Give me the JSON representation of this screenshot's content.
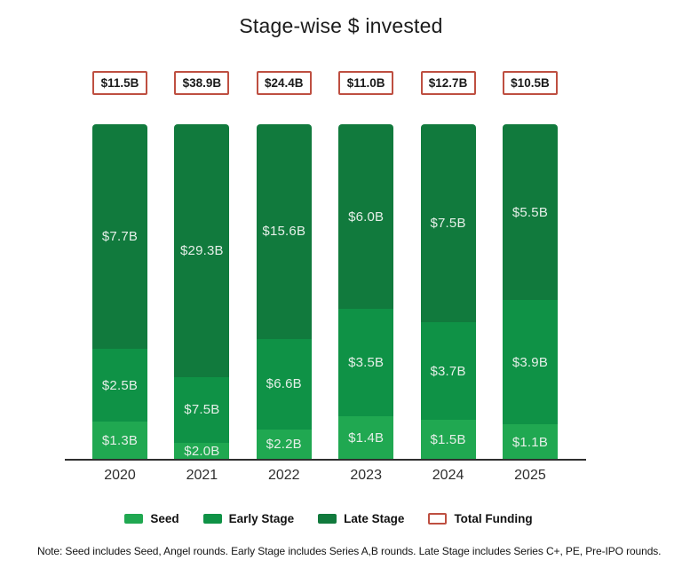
{
  "title": "Stage-wise $ invested",
  "colors": {
    "seed": "#20A851",
    "early_stage": "#0F9246",
    "late_stage": "#117A3D",
    "total_border": "#BE4F41",
    "segment_label_text": "#E5EFE8",
    "axis": "#2F2F2F"
  },
  "chart_data": {
    "type": "bar",
    "stacked": "percent-height-absolute-labels",
    "orientation": "vertical",
    "title": "Stage-wise $ invested",
    "xlabel": "",
    "ylabel": "",
    "grid": false,
    "legend_position": "bottom",
    "categories": [
      "2020",
      "2021",
      "2022",
      "2023",
      "2024",
      "2025"
    ],
    "series": [
      {
        "name": "Seed",
        "color_key": "seed",
        "values": [
          1.3,
          2.0,
          2.2,
          1.4,
          1.5,
          1.1
        ],
        "labels": [
          "$1.3B",
          "$2.0B",
          "$2.2B",
          "$1.4B",
          "$1.5B",
          "$1.1B"
        ]
      },
      {
        "name": "Early Stage",
        "color_key": "early_stage",
        "values": [
          2.5,
          7.5,
          6.6,
          3.5,
          3.7,
          3.9
        ],
        "labels": [
          "$2.5B",
          "$7.5B",
          "$6.6B",
          "$3.5B",
          "$3.7B",
          "$3.9B"
        ]
      },
      {
        "name": "Late Stage",
        "color_key": "late_stage",
        "values": [
          7.7,
          29.3,
          15.6,
          6.0,
          7.5,
          5.5
        ],
        "labels": [
          "$7.7B",
          "$29.3B",
          "$15.6B",
          "$6.0B",
          "$7.5B",
          "$5.5B"
        ]
      }
    ],
    "totals": {
      "name": "Total Funding",
      "values": [
        11.5,
        38.9,
        24.4,
        11.0,
        12.7,
        10.5
      ],
      "labels": [
        "$11.5B",
        "$38.9B",
        "$24.4B",
        "$11.0B",
        "$12.7B",
        "$10.5B"
      ]
    }
  },
  "legend": {
    "items": [
      {
        "label": "Seed",
        "swatch": "seed"
      },
      {
        "label": "Early Stage",
        "swatch": "early_stage"
      },
      {
        "label": "Late Stage",
        "swatch": "late_stage"
      },
      {
        "label": "Total Funding",
        "swatch": "outline"
      }
    ]
  },
  "note": "Note: Seed includes Seed, Angel rounds. Early Stage includes Series A,B rounds. Late Stage includes Series C+, PE, Pre-IPO rounds."
}
